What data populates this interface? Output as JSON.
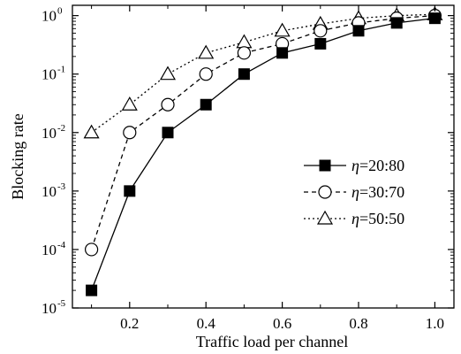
{
  "chart_data": {
    "type": "line",
    "title": "",
    "xlabel": "Traffic load per channel",
    "ylabel": "Blocking rate",
    "xlim": [
      0.05,
      1.05
    ],
    "ylim": [
      1e-05,
      1.5
    ],
    "yscale": "log",
    "grid": false,
    "legend_position": "center-right",
    "x_ticks": [
      0.2,
      0.4,
      0.6,
      0.8,
      1.0
    ],
    "x_tick_labels": [
      "0.2",
      "0.4",
      "0.6",
      "0.8",
      "1.0"
    ],
    "y_ticks": [
      {
        "value": 1e-05,
        "base": "10",
        "exp": "-5"
      },
      {
        "value": 0.0001,
        "base": "10",
        "exp": "-4"
      },
      {
        "value": 0.001,
        "base": "10",
        "exp": "-3"
      },
      {
        "value": 0.01,
        "base": "10",
        "exp": "-2"
      },
      {
        "value": 0.1,
        "base": "10",
        "exp": "-1"
      },
      {
        "value": 1,
        "base": "10",
        "exp": "0"
      }
    ],
    "x": [
      0.1,
      0.2,
      0.3,
      0.4,
      0.5,
      0.6,
      0.7,
      0.8,
      0.9,
      1.0
    ],
    "series": [
      {
        "name_symbol": "η",
        "name_value": "=20:80",
        "marker": "filled-square",
        "line_style": "solid",
        "color": "#000000",
        "values": [
          2e-05,
          0.001,
          0.01,
          0.03,
          0.1,
          0.23,
          0.33,
          0.55,
          0.75,
          0.9
        ]
      },
      {
        "name_symbol": "η",
        "name_value": "=30:70",
        "marker": "open-circle",
        "line_style": "dashed",
        "color": "#000000",
        "values": [
          0.0001,
          0.01,
          0.03,
          0.1,
          0.23,
          0.33,
          0.55,
          0.75,
          0.9,
          1.0
        ]
      },
      {
        "name_symbol": "η",
        "name_value": "=50:50",
        "marker": "open-triangle",
        "line_style": "dotted",
        "color": "#000000",
        "values": [
          0.01,
          0.03,
          0.1,
          0.23,
          0.35,
          0.55,
          0.72,
          0.9,
          1.0,
          1.05
        ]
      }
    ]
  }
}
